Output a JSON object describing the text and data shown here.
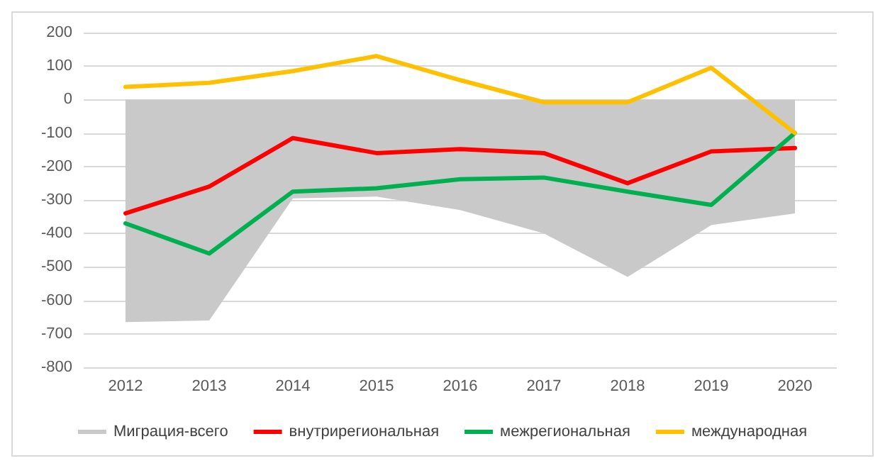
{
  "chart_data": {
    "type": "line",
    "categories": [
      "2012",
      "2013",
      "2014",
      "2015",
      "2016",
      "2017",
      "2018",
      "2019",
      "2020"
    ],
    "series": [
      {
        "name": "Миграция-всего",
        "type": "area",
        "color": "#c9c9c9",
        "values": [
          -665,
          -660,
          -295,
          -290,
          -330,
          -400,
          -530,
          -375,
          -340
        ]
      },
      {
        "name": "внутрирегиональная",
        "color": "#ff0000",
        "values": [
          -340,
          -260,
          -115,
          -160,
          -148,
          -160,
          -250,
          -155,
          -145
        ]
      },
      {
        "name": "межрегиональная",
        "color": "#00b050",
        "values": [
          -370,
          -460,
          -275,
          -265,
          -238,
          -233,
          -275,
          -315,
          -100
        ]
      },
      {
        "name": "международная",
        "color": "#ffc000",
        "values": [
          38,
          50,
          85,
          130,
          58,
          -8,
          -8,
          95,
          -100
        ]
      }
    ],
    "ylim": [
      -800,
      200
    ],
    "yticks": [
      -800,
      -700,
      -600,
      -500,
      -400,
      -300,
      -200,
      -100,
      0,
      100,
      200
    ],
    "grid": "y",
    "legend": "bottom",
    "marker": "none",
    "line_style": "solid"
  }
}
